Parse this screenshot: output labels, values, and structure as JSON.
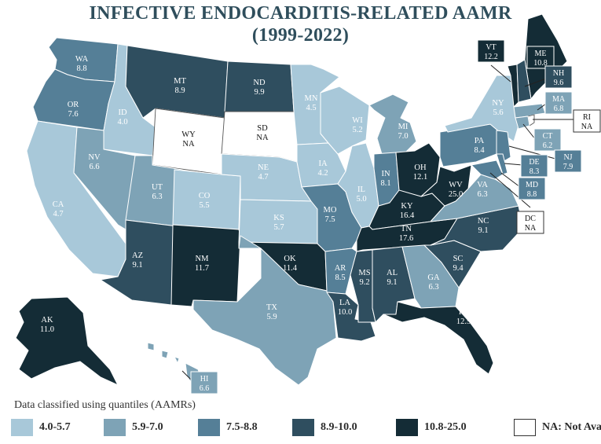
{
  "title": {
    "line1": "INFECTIVE ENDOCARDITIS-RELATED AAMR",
    "line2": "(1999-2022)"
  },
  "colors": {
    "c1": "#a8c8d9",
    "c2": "#7ea3b6",
    "c3": "#557f97",
    "c4": "#2f4e5f",
    "c5": "#142c36",
    "na": "#ffffff",
    "border": "#ffffff",
    "title": "#2f4e5c"
  },
  "states": [
    {
      "abbr": "WA",
      "value": "8.8",
      "cls": "c3"
    },
    {
      "abbr": "OR",
      "value": "7.6",
      "cls": "c3"
    },
    {
      "abbr": "CA",
      "value": "4.7",
      "cls": "c1"
    },
    {
      "abbr": "ID",
      "value": "4.0",
      "cls": "c1"
    },
    {
      "abbr": "NV",
      "value": "6.6",
      "cls": "c2"
    },
    {
      "abbr": "MT",
      "value": "8.9",
      "cls": "c4"
    },
    {
      "abbr": "WY",
      "value": "NA",
      "cls": "na"
    },
    {
      "abbr": "UT",
      "value": "6.3",
      "cls": "c2"
    },
    {
      "abbr": "AZ",
      "value": "9.1",
      "cls": "c4"
    },
    {
      "abbr": "CO",
      "value": "5.5",
      "cls": "c1"
    },
    {
      "abbr": "NM",
      "value": "11.7",
      "cls": "c5"
    },
    {
      "abbr": "ND",
      "value": "9.9",
      "cls": "c4"
    },
    {
      "abbr": "SD",
      "value": "NA",
      "cls": "na"
    },
    {
      "abbr": "NE",
      "value": "4.7",
      "cls": "c1"
    },
    {
      "abbr": "KS",
      "value": "5.7",
      "cls": "c1"
    },
    {
      "abbr": "OK",
      "value": "11.4",
      "cls": "c5"
    },
    {
      "abbr": "TX",
      "value": "5.9",
      "cls": "c2"
    },
    {
      "abbr": "MN",
      "value": "4.5",
      "cls": "c1"
    },
    {
      "abbr": "IA",
      "value": "4.2",
      "cls": "c1"
    },
    {
      "abbr": "MO",
      "value": "7.5",
      "cls": "c3"
    },
    {
      "abbr": "AR",
      "value": "8.5",
      "cls": "c3"
    },
    {
      "abbr": "LA",
      "value": "10.0",
      "cls": "c4"
    },
    {
      "abbr": "WI",
      "value": "5.2",
      "cls": "c1"
    },
    {
      "abbr": "IL",
      "value": "5.0",
      "cls": "c1"
    },
    {
      "abbr": "MI",
      "value": "7.0",
      "cls": "c2"
    },
    {
      "abbr": "IN",
      "value": "8.1",
      "cls": "c3"
    },
    {
      "abbr": "OH",
      "value": "12.1",
      "cls": "c5"
    },
    {
      "abbr": "KY",
      "value": "16.4",
      "cls": "c5"
    },
    {
      "abbr": "TN",
      "value": "17.6",
      "cls": "c5"
    },
    {
      "abbr": "MS",
      "value": "9.2",
      "cls": "c4"
    },
    {
      "abbr": "AL",
      "value": "9.1",
      "cls": "c4"
    },
    {
      "abbr": "GA",
      "value": "6.3",
      "cls": "c2"
    },
    {
      "abbr": "FL",
      "value": "12.5",
      "cls": "c5"
    },
    {
      "abbr": "SC",
      "value": "9.4",
      "cls": "c4"
    },
    {
      "abbr": "NC",
      "value": "9.1",
      "cls": "c4"
    },
    {
      "abbr": "VA",
      "value": "6.3",
      "cls": "c2"
    },
    {
      "abbr": "WV",
      "value": "25.0",
      "cls": "c5"
    },
    {
      "abbr": "PA",
      "value": "8.4",
      "cls": "c3"
    },
    {
      "abbr": "NY",
      "value": "5.6",
      "cls": "c1"
    },
    {
      "abbr": "ME",
      "value": "10.8",
      "cls": "c5"
    },
    {
      "abbr": "VT",
      "value": "12.2",
      "cls": "c5"
    },
    {
      "abbr": "NH",
      "value": "9.6",
      "cls": "c4"
    },
    {
      "abbr": "MA",
      "value": "6.8",
      "cls": "c2"
    },
    {
      "abbr": "RI",
      "value": "NA",
      "cls": "na"
    },
    {
      "abbr": "CT",
      "value": "6.2",
      "cls": "c2"
    },
    {
      "abbr": "NJ",
      "value": "7.9",
      "cls": "c3"
    },
    {
      "abbr": "DE",
      "value": "8.3",
      "cls": "c3"
    },
    {
      "abbr": "MD",
      "value": "8.8",
      "cls": "c3"
    },
    {
      "abbr": "DC",
      "value": "NA",
      "cls": "na"
    },
    {
      "abbr": "AK",
      "value": "11.0",
      "cls": "c5"
    },
    {
      "abbr": "HI",
      "value": "6.6",
      "cls": "c2"
    }
  ],
  "legend": {
    "caption": "Data classified using quantiles (AAMRs)",
    "items": [
      {
        "label": "4.0-5.7",
        "cls": "c1"
      },
      {
        "label": "5.9-7.0",
        "cls": "c2"
      },
      {
        "label": "7.5-8.8",
        "cls": "c3"
      },
      {
        "label": "8.9-10.0",
        "cls": "c4"
      },
      {
        "label": "10.8-25.0",
        "cls": "c5"
      },
      {
        "label": "NA: Not Available",
        "cls": "na"
      }
    ]
  }
}
